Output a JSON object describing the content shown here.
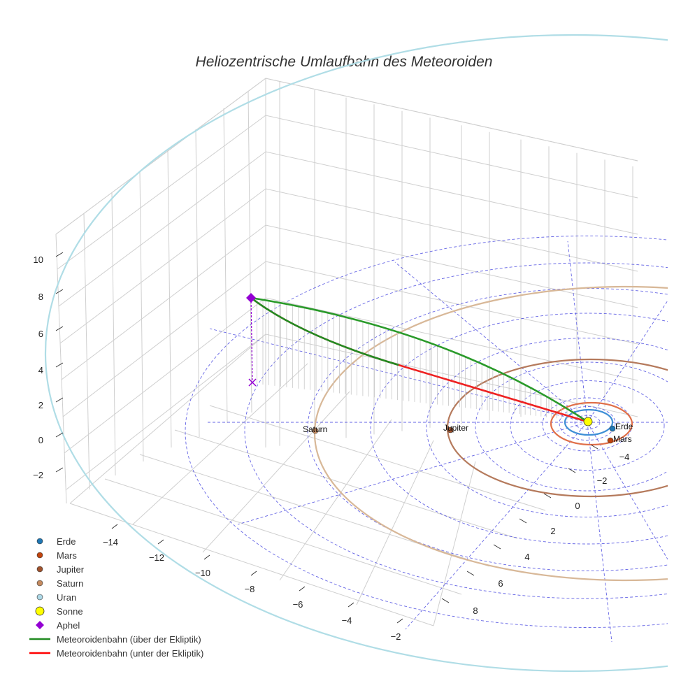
{
  "chart_data": {
    "type": "scatter3d",
    "title": "Heliozentrische Umlaufbahn des Meteoroiden",
    "axes": {
      "x": {
        "ticks": [
          "−2",
          "−4",
          "−6",
          "−8",
          "−10",
          "−12",
          "−14"
        ]
      },
      "y": {
        "ticks": [
          "−4",
          "−2",
          "0",
          "2",
          "4",
          "6",
          "8"
        ]
      },
      "z": {
        "ticks": [
          "10",
          "8",
          "6",
          "4",
          "2",
          "0",
          "−2"
        ]
      }
    },
    "points": [
      {
        "name": "Erde",
        "label": "Erde",
        "color": "#1f77b4"
      },
      {
        "name": "Mars",
        "label": "Mars",
        "color": "#c1440e"
      },
      {
        "name": "Jupiter",
        "label": "Jupiter",
        "color": "#a0522d"
      },
      {
        "name": "Saturn",
        "label": "Saturn",
        "color": "#c48a5f"
      },
      {
        "name": "Sonne",
        "label": "",
        "color": "#ffff00"
      },
      {
        "name": "Aphel",
        "label": "",
        "color": "#9400d3"
      }
    ],
    "series": [
      {
        "name": "Meteoroidenbahn (über der Ekliptik)",
        "color": "#228b22"
      },
      {
        "name": "Meteoroidenbahn (unter der Ekliptik)",
        "color": "#ff0000"
      }
    ],
    "legend": {
      "position": "bottom-left",
      "entries": [
        {
          "name": "Erde",
          "symbol": "dot",
          "color": "#1f77b4"
        },
        {
          "name": "Mars",
          "symbol": "dot",
          "color": "#c1440e"
        },
        {
          "name": "Jupiter",
          "symbol": "dot",
          "color": "#a0522d"
        },
        {
          "name": "Saturn",
          "symbol": "dot",
          "color": "#c48a5f"
        },
        {
          "name": "Uran",
          "symbol": "dot",
          "color": "#add8e6"
        },
        {
          "name": "Sonne",
          "symbol": "bigdot",
          "color": "#ffff00"
        },
        {
          "name": "Aphel",
          "symbol": "diamond",
          "color": "#9400d3"
        },
        {
          "name": "Meteoroidenbahn (über der Ekliptik)",
          "symbol": "line",
          "color": "#228b22"
        },
        {
          "name": "Meteoroidenbahn (unter der Ekliptik)",
          "symbol": "line",
          "color": "#ff0000"
        }
      ]
    }
  }
}
